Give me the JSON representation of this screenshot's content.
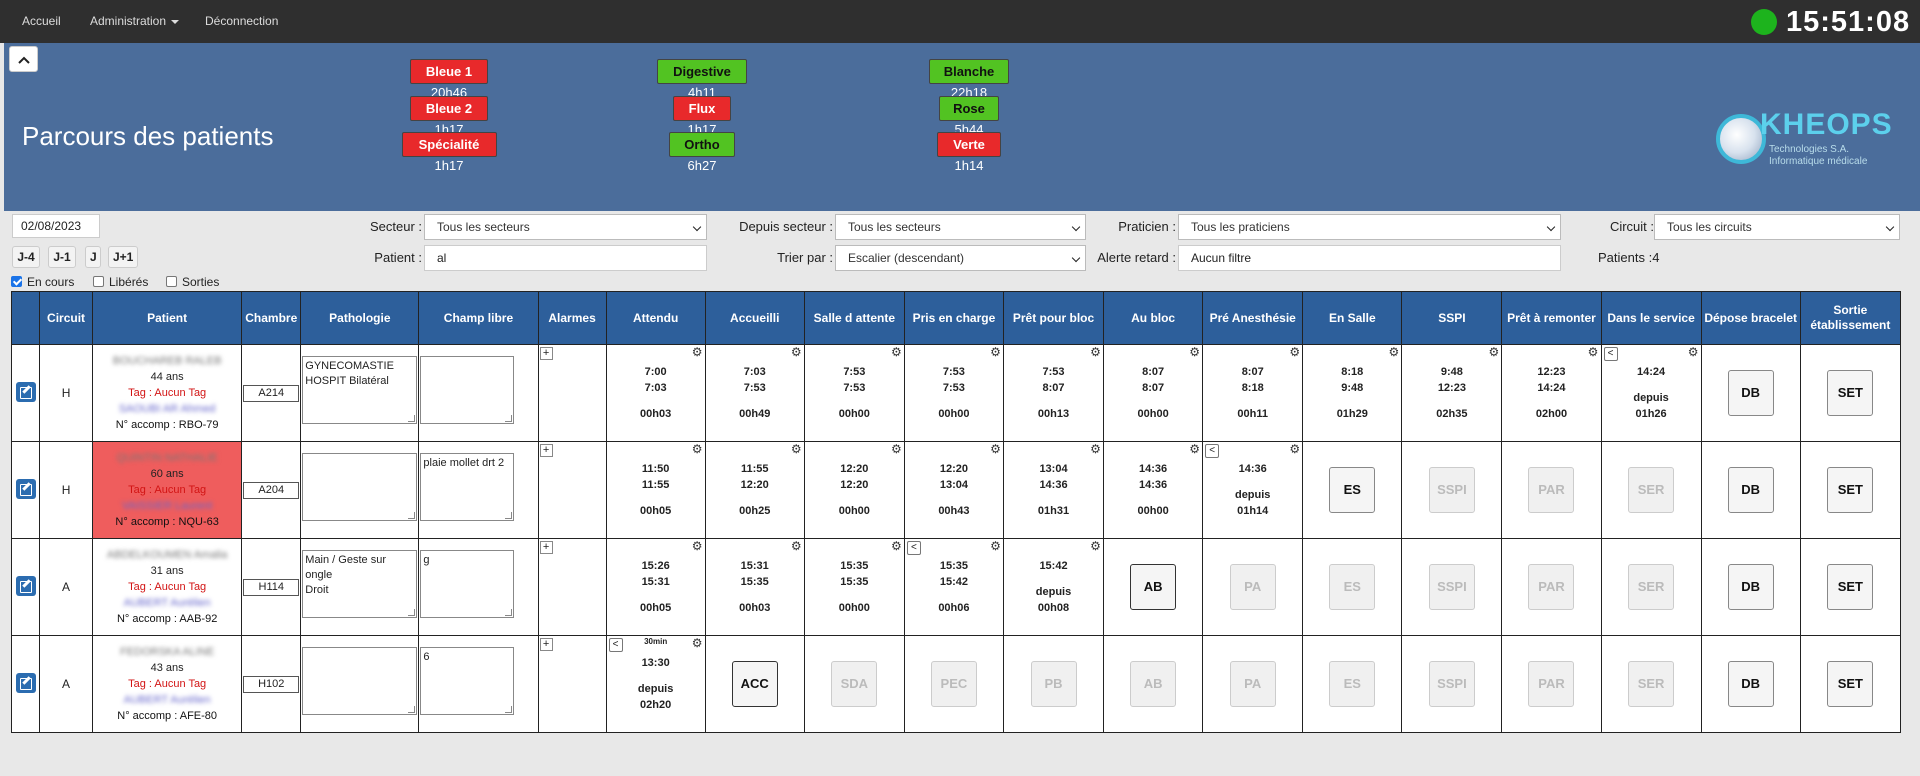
{
  "nav": {
    "home": "Accueil",
    "admin": "Administration",
    "logout": "Déconnection",
    "clock": "15:51:08",
    "status_color": "#1db31d"
  },
  "banner": {
    "title": "Parcours des patients",
    "collapse_icon": "chevron-up-icon",
    "circuits": [
      {
        "label": "Bleue 1",
        "time": "20h46",
        "status": "red"
      },
      {
        "label": "Bleue 2",
        "time": "1h17",
        "status": "red"
      },
      {
        "label": "Spécialité",
        "time": "1h17",
        "status": "red"
      },
      {
        "label": "Digestive",
        "time": "4h11",
        "status": "green"
      },
      {
        "label": "Flux",
        "time": "1h17",
        "status": "red"
      },
      {
        "label": "Ortho",
        "time": "6h27",
        "status": "green"
      },
      {
        "label": "Blanche",
        "time": "22h18",
        "status": "green"
      },
      {
        "label": "Rose",
        "time": "5h44",
        "status": "green"
      },
      {
        "label": "Verte",
        "time": "1h14",
        "status": "red"
      }
    ],
    "logo": {
      "name": "KHEOPS",
      "sub1": "Technologies S.A.",
      "sub2": "Informatique médicale"
    }
  },
  "filters": {
    "date": "02/08/2023",
    "day_buttons": [
      "J-4",
      "J-1",
      "J",
      "J+1"
    ],
    "secteur_label": "Secteur :",
    "secteur_value": "Tous les secteurs",
    "depuis_label": "Depuis secteur :",
    "depuis_value": "Tous les secteurs",
    "praticien_label": "Praticien :",
    "praticien_value": "Tous les praticiens",
    "circuit_label": "Circuit :",
    "circuit_value": "Tous les circuits",
    "patient_label": "Patient :",
    "patient_value": "al",
    "trier_label": "Trier par :",
    "trier_value": "Escalier (descendant)",
    "alerte_label": "Alerte retard :",
    "alerte_value": "Aucun filtre",
    "patients_count": "Patients :4",
    "checks": [
      {
        "label": "En cours",
        "checked": true
      },
      {
        "label": "Libérés",
        "checked": false
      },
      {
        "label": "Sorties",
        "checked": false
      }
    ]
  },
  "table": {
    "headers": [
      "",
      "Circuit",
      "Patient",
      "Chambre",
      "Pathologie",
      "Champ libre",
      "Alarmes",
      "Attendu",
      "Accueilli",
      "Salle d attente",
      "Pris en charge",
      "Prêt pour bloc",
      "Au bloc",
      "Pré Anesthésie",
      "En Salle",
      "SSPI",
      "Prêt à remonter",
      "Dans le service",
      "Dépose bracelet",
      "Sortie établissement"
    ],
    "rows": [
      {
        "circuit": "H",
        "patient": {
          "name": "BOUCHAREB RALEB",
          "age": "44 ans",
          "tag": "Tag : Aucun Tag",
          "doctor": "SAOUBI AR Ahmed",
          "accomp": "N° accomp : RBO-79",
          "highlight": false
        },
        "room": "A214",
        "pathologie": "GYNECOMASTIE\nHOSPIT Bilatéral",
        "champ": "",
        "cells": [
          {
            "kind": "time",
            "color": "green",
            "t1": "7:00",
            "t2": "7:03",
            "dur": "00h03"
          },
          {
            "kind": "time",
            "color": "green",
            "t1": "7:03",
            "t2": "7:53",
            "dur": "00h49"
          },
          {
            "kind": "time",
            "color": "green",
            "t1": "7:53",
            "t2": "7:53",
            "dur": "00h00"
          },
          {
            "kind": "time",
            "color": "green",
            "t1": "7:53",
            "t2": "7:53",
            "dur": "00h00"
          },
          {
            "kind": "time",
            "color": "green",
            "t1": "7:53",
            "t2": "8:07",
            "dur": "00h13"
          },
          {
            "kind": "time",
            "color": "green",
            "t1": "8:07",
            "t2": "8:07",
            "dur": "00h00"
          },
          {
            "kind": "time",
            "color": "green",
            "t1": "8:07",
            "t2": "8:18",
            "dur": "00h11"
          },
          {
            "kind": "time",
            "color": "green",
            "t1": "8:18",
            "t2": "9:48",
            "dur": "01h29"
          },
          {
            "kind": "time",
            "color": "green",
            "t1": "9:48",
            "t2": "12:23",
            "dur": "02h35"
          },
          {
            "kind": "time",
            "color": "green",
            "t1": "12:23",
            "t2": "14:24",
            "dur": "02h00"
          },
          {
            "kind": "since",
            "color": "yellow",
            "t1": "14:24",
            "since": "depuis",
            "dur": "01h26",
            "back": true
          },
          {
            "kind": "btn",
            "label": "DB",
            "state": "active"
          },
          {
            "kind": "btn",
            "label": "SET",
            "state": "active"
          }
        ]
      },
      {
        "circuit": "H",
        "patient": {
          "name": "QUINTIN NATHALIE",
          "age": "60 ans",
          "tag": "Tag : Aucun Tag",
          "doctor": "VAISSIER Laurent",
          "accomp": "N° accomp : NQU-63",
          "highlight": true
        },
        "room": "A204",
        "pathologie": "",
        "champ": "plaie mollet drt 2",
        "cells": [
          {
            "kind": "time",
            "color": "green",
            "t1": "11:50",
            "t2": "11:55",
            "dur": "00h05"
          },
          {
            "kind": "time",
            "color": "green",
            "t1": "11:55",
            "t2": "12:20",
            "dur": "00h25"
          },
          {
            "kind": "time",
            "color": "green",
            "t1": "12:20",
            "t2": "12:20",
            "dur": "00h00"
          },
          {
            "kind": "time",
            "color": "green",
            "t1": "12:20",
            "t2": "13:04",
            "dur": "00h43"
          },
          {
            "kind": "time",
            "color": "green",
            "t1": "13:04",
            "t2": "14:36",
            "dur": "01h31"
          },
          {
            "kind": "time",
            "color": "green",
            "t1": "14:36",
            "t2": "14:36",
            "dur": "00h00"
          },
          {
            "kind": "since",
            "color": "yellow",
            "t1": "14:36",
            "since": "depuis",
            "dur": "01h14",
            "back": true
          },
          {
            "kind": "btn",
            "label": "ES",
            "state": "active"
          },
          {
            "kind": "btn",
            "label": "SSPI",
            "state": "disabled"
          },
          {
            "kind": "btn",
            "label": "PAR",
            "state": "disabled"
          },
          {
            "kind": "btn",
            "label": "SER",
            "state": "disabled"
          },
          {
            "kind": "btn",
            "label": "DB",
            "state": "active"
          },
          {
            "kind": "btn",
            "label": "SET",
            "state": "active"
          }
        ]
      },
      {
        "circuit": "A",
        "patient": {
          "name": "ABDELKOUMEN Amalia",
          "age": "31 ans",
          "tag": "Tag : Aucun Tag",
          "doctor": "AUBERT Aurélien",
          "accomp": "N° accomp : AAB-92",
          "highlight": false
        },
        "room": "H114",
        "pathologie": "Main / Geste sur ongle\nDroit",
        "champ": "g",
        "cells": [
          {
            "kind": "time",
            "color": "green",
            "t1": "15:26",
            "t2": "15:31",
            "dur": "00h05"
          },
          {
            "kind": "time",
            "color": "green",
            "t1": "15:31",
            "t2": "15:35",
            "dur": "00h03"
          },
          {
            "kind": "time",
            "color": "green",
            "t1": "15:35",
            "t2": "15:35",
            "dur": "00h00"
          },
          {
            "kind": "time",
            "color": "green",
            "t1": "15:35",
            "t2": "15:42",
            "dur": "00h06",
            "back": true
          },
          {
            "kind": "since",
            "color": "yellow",
            "t1": "15:42",
            "since": "depuis",
            "dur": "00h08"
          },
          {
            "kind": "btn",
            "label": "AB",
            "state": "strong"
          },
          {
            "kind": "btn",
            "label": "PA",
            "state": "disabled"
          },
          {
            "kind": "btn",
            "label": "ES",
            "state": "disabled"
          },
          {
            "kind": "btn",
            "label": "SSPI",
            "state": "disabled"
          },
          {
            "kind": "btn",
            "label": "PAR",
            "state": "disabled"
          },
          {
            "kind": "btn",
            "label": "SER",
            "state": "disabled"
          },
          {
            "kind": "btn",
            "label": "DB",
            "state": "active"
          },
          {
            "kind": "btn",
            "label": "SET",
            "state": "active"
          }
        ]
      },
      {
        "circuit": "A",
        "patient": {
          "name": "FEDORSKA ALINE",
          "age": "43 ans",
          "tag": "Tag : Aucun Tag",
          "doctor": "AUBERT Aurélien",
          "accomp": "N° accomp : AFE-80",
          "highlight": false
        },
        "room": "H102",
        "pathologie": "",
        "champ": "6",
        "cells": [
          {
            "kind": "since",
            "color": "orange",
            "t1": "13:30",
            "since": "depuis",
            "dur": "02h20",
            "back": true,
            "minute": "30min"
          },
          {
            "kind": "btn",
            "label": "ACC",
            "state": "strong"
          },
          {
            "kind": "btn",
            "label": "SDA",
            "state": "disabled"
          },
          {
            "kind": "btn",
            "label": "PEC",
            "state": "disabled"
          },
          {
            "kind": "btn",
            "label": "PB",
            "state": "disabled"
          },
          {
            "kind": "btn",
            "label": "AB",
            "state": "disabled"
          },
          {
            "kind": "btn",
            "label": "PA",
            "state": "disabled"
          },
          {
            "kind": "btn",
            "label": "ES",
            "state": "disabled"
          },
          {
            "kind": "btn",
            "label": "SSPI",
            "state": "disabled"
          },
          {
            "kind": "btn",
            "label": "PAR",
            "state": "disabled"
          },
          {
            "kind": "btn",
            "label": "SER",
            "state": "disabled"
          },
          {
            "kind": "btn",
            "label": "DB",
            "state": "active"
          },
          {
            "kind": "btn",
            "label": "SET",
            "state": "active"
          }
        ]
      }
    ]
  },
  "colors": {
    "navbar": "#2f2f2f",
    "banner": "#4b6d9b",
    "header": "#2d5f9b",
    "green_cell": "#b8f7b0",
    "yellow_cell": "#fff38a",
    "orange_cell": "#fbaa58",
    "patient_alert": "#ef5d5d"
  }
}
